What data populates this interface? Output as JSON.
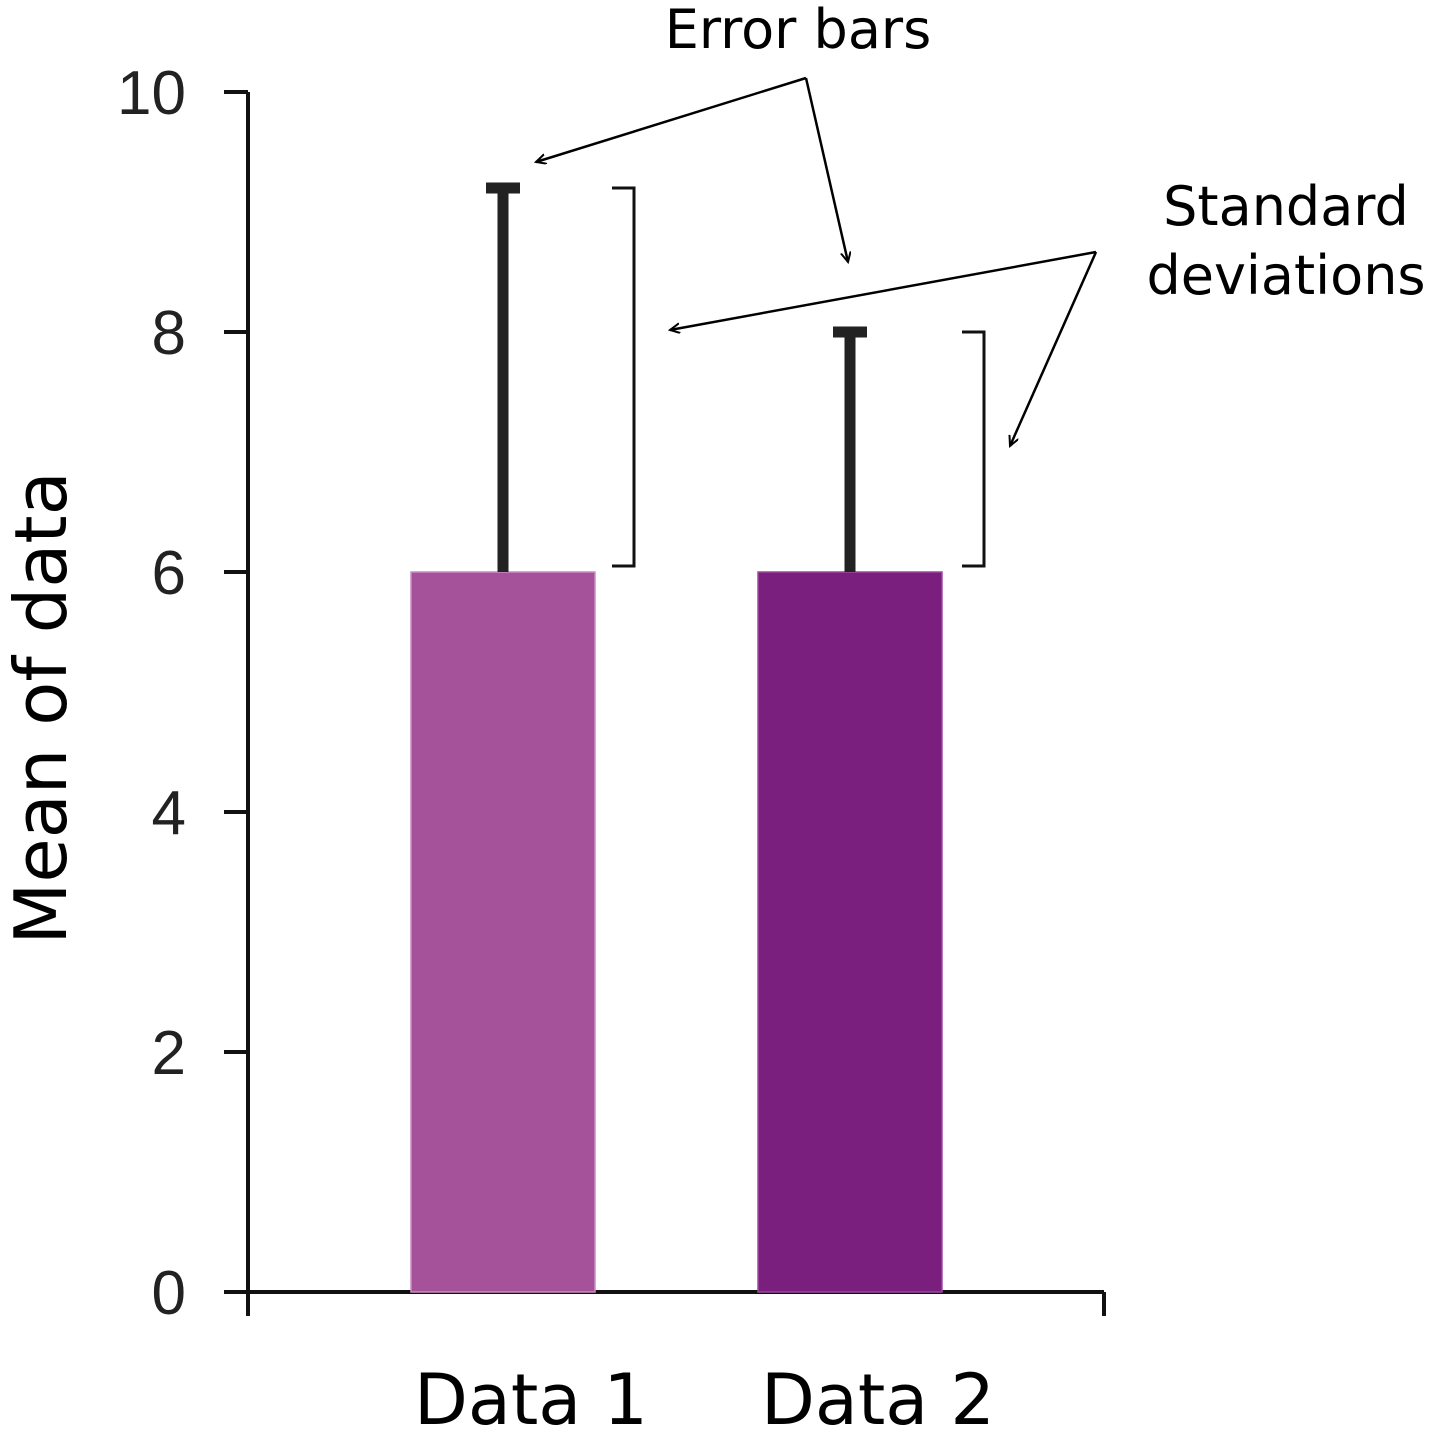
{
  "chart_data": {
    "type": "bar",
    "title": "",
    "xlabel": "",
    "ylabel": "Mean of data",
    "ylim": [
      0,
      10
    ],
    "yticks": [
      "0",
      "2",
      "4",
      "6",
      "8",
      "10"
    ],
    "categories": [
      "Data 1",
      "Data 2"
    ],
    "values": [
      6,
      6
    ],
    "error_upper": [
      9.2,
      8.0
    ],
    "colors": [
      "#a5529b",
      "#7b1f7e"
    ],
    "grid": false,
    "legend": "none",
    "annotations": {
      "error_bars": "Error bars",
      "standard_deviations": [
        "Standard",
        "deviations"
      ]
    }
  }
}
